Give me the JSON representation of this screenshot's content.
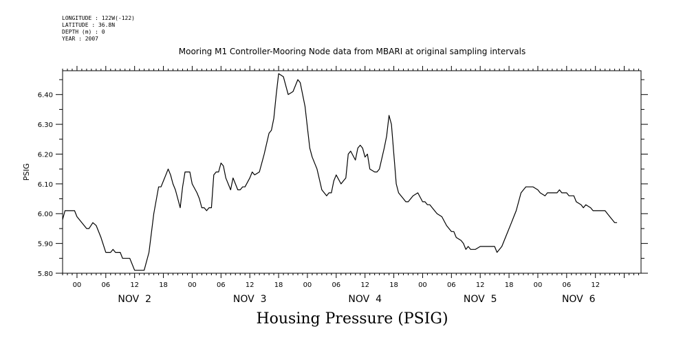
{
  "meta": {
    "longitude": "LONGITUDE : 122W(-122)",
    "latitude": "LATITUDE : 36.8N",
    "depth": "DEPTH (m) : 0",
    "year": "YEAR : 2007"
  },
  "chart_data": {
    "type": "line",
    "title": "Mooring M1 Controller-Mooring Node data from MBARI at original sampling intervals",
    "xlabel": "Housing Pressure (PSIG)",
    "ylabel": "PSIG",
    "ylim": [
      5.8,
      6.48
    ],
    "xlim_hours": [
      -3,
      117.5
    ],
    "x_unit": "hours from 2007-11-02 00:00",
    "yticks": [
      "5.80",
      "5.90",
      "6.00",
      "6.10",
      "6.20",
      "6.30",
      "6.40"
    ],
    "ytick_values": [
      5.8,
      5.9,
      6.0,
      6.1,
      6.2,
      6.3,
      6.4
    ],
    "hour_ticks": [
      {
        "h": 0,
        "label": "00"
      },
      {
        "h": 6,
        "label": "06"
      },
      {
        "h": 12,
        "label": "12"
      },
      {
        "h": 18,
        "label": "18"
      },
      {
        "h": 24,
        "label": "00"
      },
      {
        "h": 30,
        "label": "06"
      },
      {
        "h": 36,
        "label": "12"
      },
      {
        "h": 42,
        "label": "18"
      },
      {
        "h": 48,
        "label": "00"
      },
      {
        "h": 54,
        "label": "06"
      },
      {
        "h": 60,
        "label": "12"
      },
      {
        "h": 66,
        "label": "18"
      },
      {
        "h": 72,
        "label": "00"
      },
      {
        "h": 78,
        "label": "06"
      },
      {
        "h": 84,
        "label": "12"
      },
      {
        "h": 90,
        "label": "18"
      },
      {
        "h": 96,
        "label": "00"
      },
      {
        "h": 102,
        "label": "06"
      },
      {
        "h": 108,
        "label": "12"
      }
    ],
    "day_labels": [
      {
        "h": 12,
        "label": "NOV  2"
      },
      {
        "h": 36,
        "label": "NOV  3"
      },
      {
        "h": 60,
        "label": "NOV  4"
      },
      {
        "h": 84,
        "label": "NOV  5"
      },
      {
        "h": 104.5,
        "label": "NOV  6"
      }
    ],
    "grid": false,
    "series": [
      {
        "color": "#000000",
        "points": [
          [
            -3,
            5.98
          ],
          [
            -2.5,
            6.01
          ],
          [
            -1.5,
            6.01
          ],
          [
            -0.5,
            6.01
          ],
          [
            0,
            5.99
          ],
          [
            1,
            5.97
          ],
          [
            2,
            5.95
          ],
          [
            2.5,
            5.95
          ],
          [
            3.3,
            5.97
          ],
          [
            4,
            5.96
          ],
          [
            5,
            5.92
          ],
          [
            6,
            5.87
          ],
          [
            7,
            5.87
          ],
          [
            7.5,
            5.88
          ],
          [
            8,
            5.87
          ],
          [
            9,
            5.87
          ],
          [
            9.5,
            5.85
          ],
          [
            10,
            5.85
          ],
          [
            11,
            5.85
          ],
          [
            11.5,
            5.83
          ],
          [
            12,
            5.81
          ],
          [
            13,
            5.81
          ],
          [
            14,
            5.81
          ],
          [
            15,
            5.87
          ],
          [
            16,
            6.0
          ],
          [
            17,
            6.09
          ],
          [
            17.5,
            6.09
          ],
          [
            18,
            6.11
          ],
          [
            18.5,
            6.13
          ],
          [
            19,
            6.15
          ],
          [
            19.5,
            6.13
          ],
          [
            20,
            6.1
          ],
          [
            20.5,
            6.08
          ],
          [
            21,
            6.05
          ],
          [
            21.5,
            6.02
          ],
          [
            22,
            6.09
          ],
          [
            22.5,
            6.14
          ],
          [
            23.5,
            6.14
          ],
          [
            24,
            6.1
          ],
          [
            25,
            6.07
          ],
          [
            25.5,
            6.05
          ],
          [
            26,
            6.02
          ],
          [
            26.5,
            6.02
          ],
          [
            27,
            6.01
          ],
          [
            27.5,
            6.02
          ],
          [
            28,
            6.02
          ],
          [
            28.5,
            6.13
          ],
          [
            29,
            6.14
          ],
          [
            29.5,
            6.14
          ],
          [
            30,
            6.17
          ],
          [
            30.5,
            6.16
          ],
          [
            31,
            6.12
          ],
          [
            32,
            6.08
          ],
          [
            32.5,
            6.12
          ],
          [
            33,
            6.1
          ],
          [
            33.5,
            6.08
          ],
          [
            34,
            6.08
          ],
          [
            34.5,
            6.09
          ],
          [
            35,
            6.09
          ],
          [
            36,
            6.12
          ],
          [
            36.5,
            6.14
          ],
          [
            37,
            6.13
          ],
          [
            38,
            6.14
          ],
          [
            39,
            6.2
          ],
          [
            40,
            6.27
          ],
          [
            40.5,
            6.28
          ],
          [
            41,
            6.32
          ],
          [
            41.5,
            6.4
          ],
          [
            42,
            6.47
          ],
          [
            43,
            6.46
          ],
          [
            44,
            6.4
          ],
          [
            45,
            6.41
          ],
          [
            46,
            6.45
          ],
          [
            46.5,
            6.44
          ],
          [
            47.5,
            6.36
          ],
          [
            48,
            6.29
          ],
          [
            48.5,
            6.22
          ],
          [
            49,
            6.19
          ],
          [
            50,
            6.15
          ],
          [
            51,
            6.08
          ],
          [
            52,
            6.06
          ],
          [
            52.5,
            6.07
          ],
          [
            53,
            6.07
          ],
          [
            53.5,
            6.11
          ],
          [
            54,
            6.13
          ],
          [
            55,
            6.1
          ],
          [
            55.5,
            6.11
          ],
          [
            56,
            6.12
          ],
          [
            56.5,
            6.2
          ],
          [
            57,
            6.21
          ],
          [
            58,
            6.18
          ],
          [
            58.5,
            6.22
          ],
          [
            59,
            6.23
          ],
          [
            59.5,
            6.22
          ],
          [
            60,
            6.19
          ],
          [
            60.5,
            6.2
          ],
          [
            61,
            6.15
          ],
          [
            62,
            6.14
          ],
          [
            62.5,
            6.14
          ],
          [
            63,
            6.15
          ],
          [
            64,
            6.22
          ],
          [
            64.5,
            6.26
          ],
          [
            65,
            6.33
          ],
          [
            65.5,
            6.3
          ],
          [
            66,
            6.2
          ],
          [
            66.5,
            6.1
          ],
          [
            67,
            6.07
          ],
          [
            68,
            6.05
          ],
          [
            68.5,
            6.04
          ],
          [
            69,
            6.04
          ],
          [
            70,
            6.06
          ],
          [
            71,
            6.07
          ],
          [
            72,
            6.04
          ],
          [
            72.5,
            6.04
          ],
          [
            73,
            6.03
          ],
          [
            73.5,
            6.03
          ],
          [
            74,
            6.02
          ],
          [
            75,
            6.0
          ],
          [
            76,
            5.99
          ],
          [
            77,
            5.96
          ],
          [
            78,
            5.94
          ],
          [
            78.5,
            5.94
          ],
          [
            79,
            5.92
          ],
          [
            80,
            5.91
          ],
          [
            80.5,
            5.9
          ],
          [
            81,
            5.88
          ],
          [
            81.5,
            5.89
          ],
          [
            82,
            5.88
          ],
          [
            83,
            5.88
          ],
          [
            84,
            5.89
          ],
          [
            85,
            5.89
          ],
          [
            86,
            5.89
          ],
          [
            87,
            5.89
          ],
          [
            87.5,
            5.87
          ],
          [
            88.5,
            5.89
          ],
          [
            89.5,
            5.93
          ],
          [
            90.5,
            5.97
          ],
          [
            91,
            5.99
          ],
          [
            91.5,
            6.01
          ],
          [
            92,
            6.04
          ],
          [
            92.5,
            6.07
          ],
          [
            93.5,
            6.09
          ],
          [
            95,
            6.09
          ],
          [
            96,
            6.08
          ],
          [
            96.5,
            6.07
          ],
          [
            97.5,
            6.06
          ],
          [
            98,
            6.07
          ],
          [
            99,
            6.07
          ],
          [
            100,
            6.07
          ],
          [
            100.5,
            6.08
          ],
          [
            101,
            6.07
          ],
          [
            102,
            6.07
          ],
          [
            102.5,
            6.06
          ],
          [
            103.5,
            6.06
          ],
          [
            104,
            6.04
          ],
          [
            105,
            6.03
          ],
          [
            105.5,
            6.02
          ],
          [
            106,
            6.03
          ],
          [
            107,
            6.02
          ],
          [
            107.5,
            6.01
          ],
          [
            108,
            6.01
          ],
          [
            110,
            6.01
          ],
          [
            110.5,
            6.0
          ],
          [
            111,
            5.99
          ],
          [
            112,
            5.97
          ],
          [
            112.5,
            5.97
          ]
        ]
      }
    ]
  }
}
